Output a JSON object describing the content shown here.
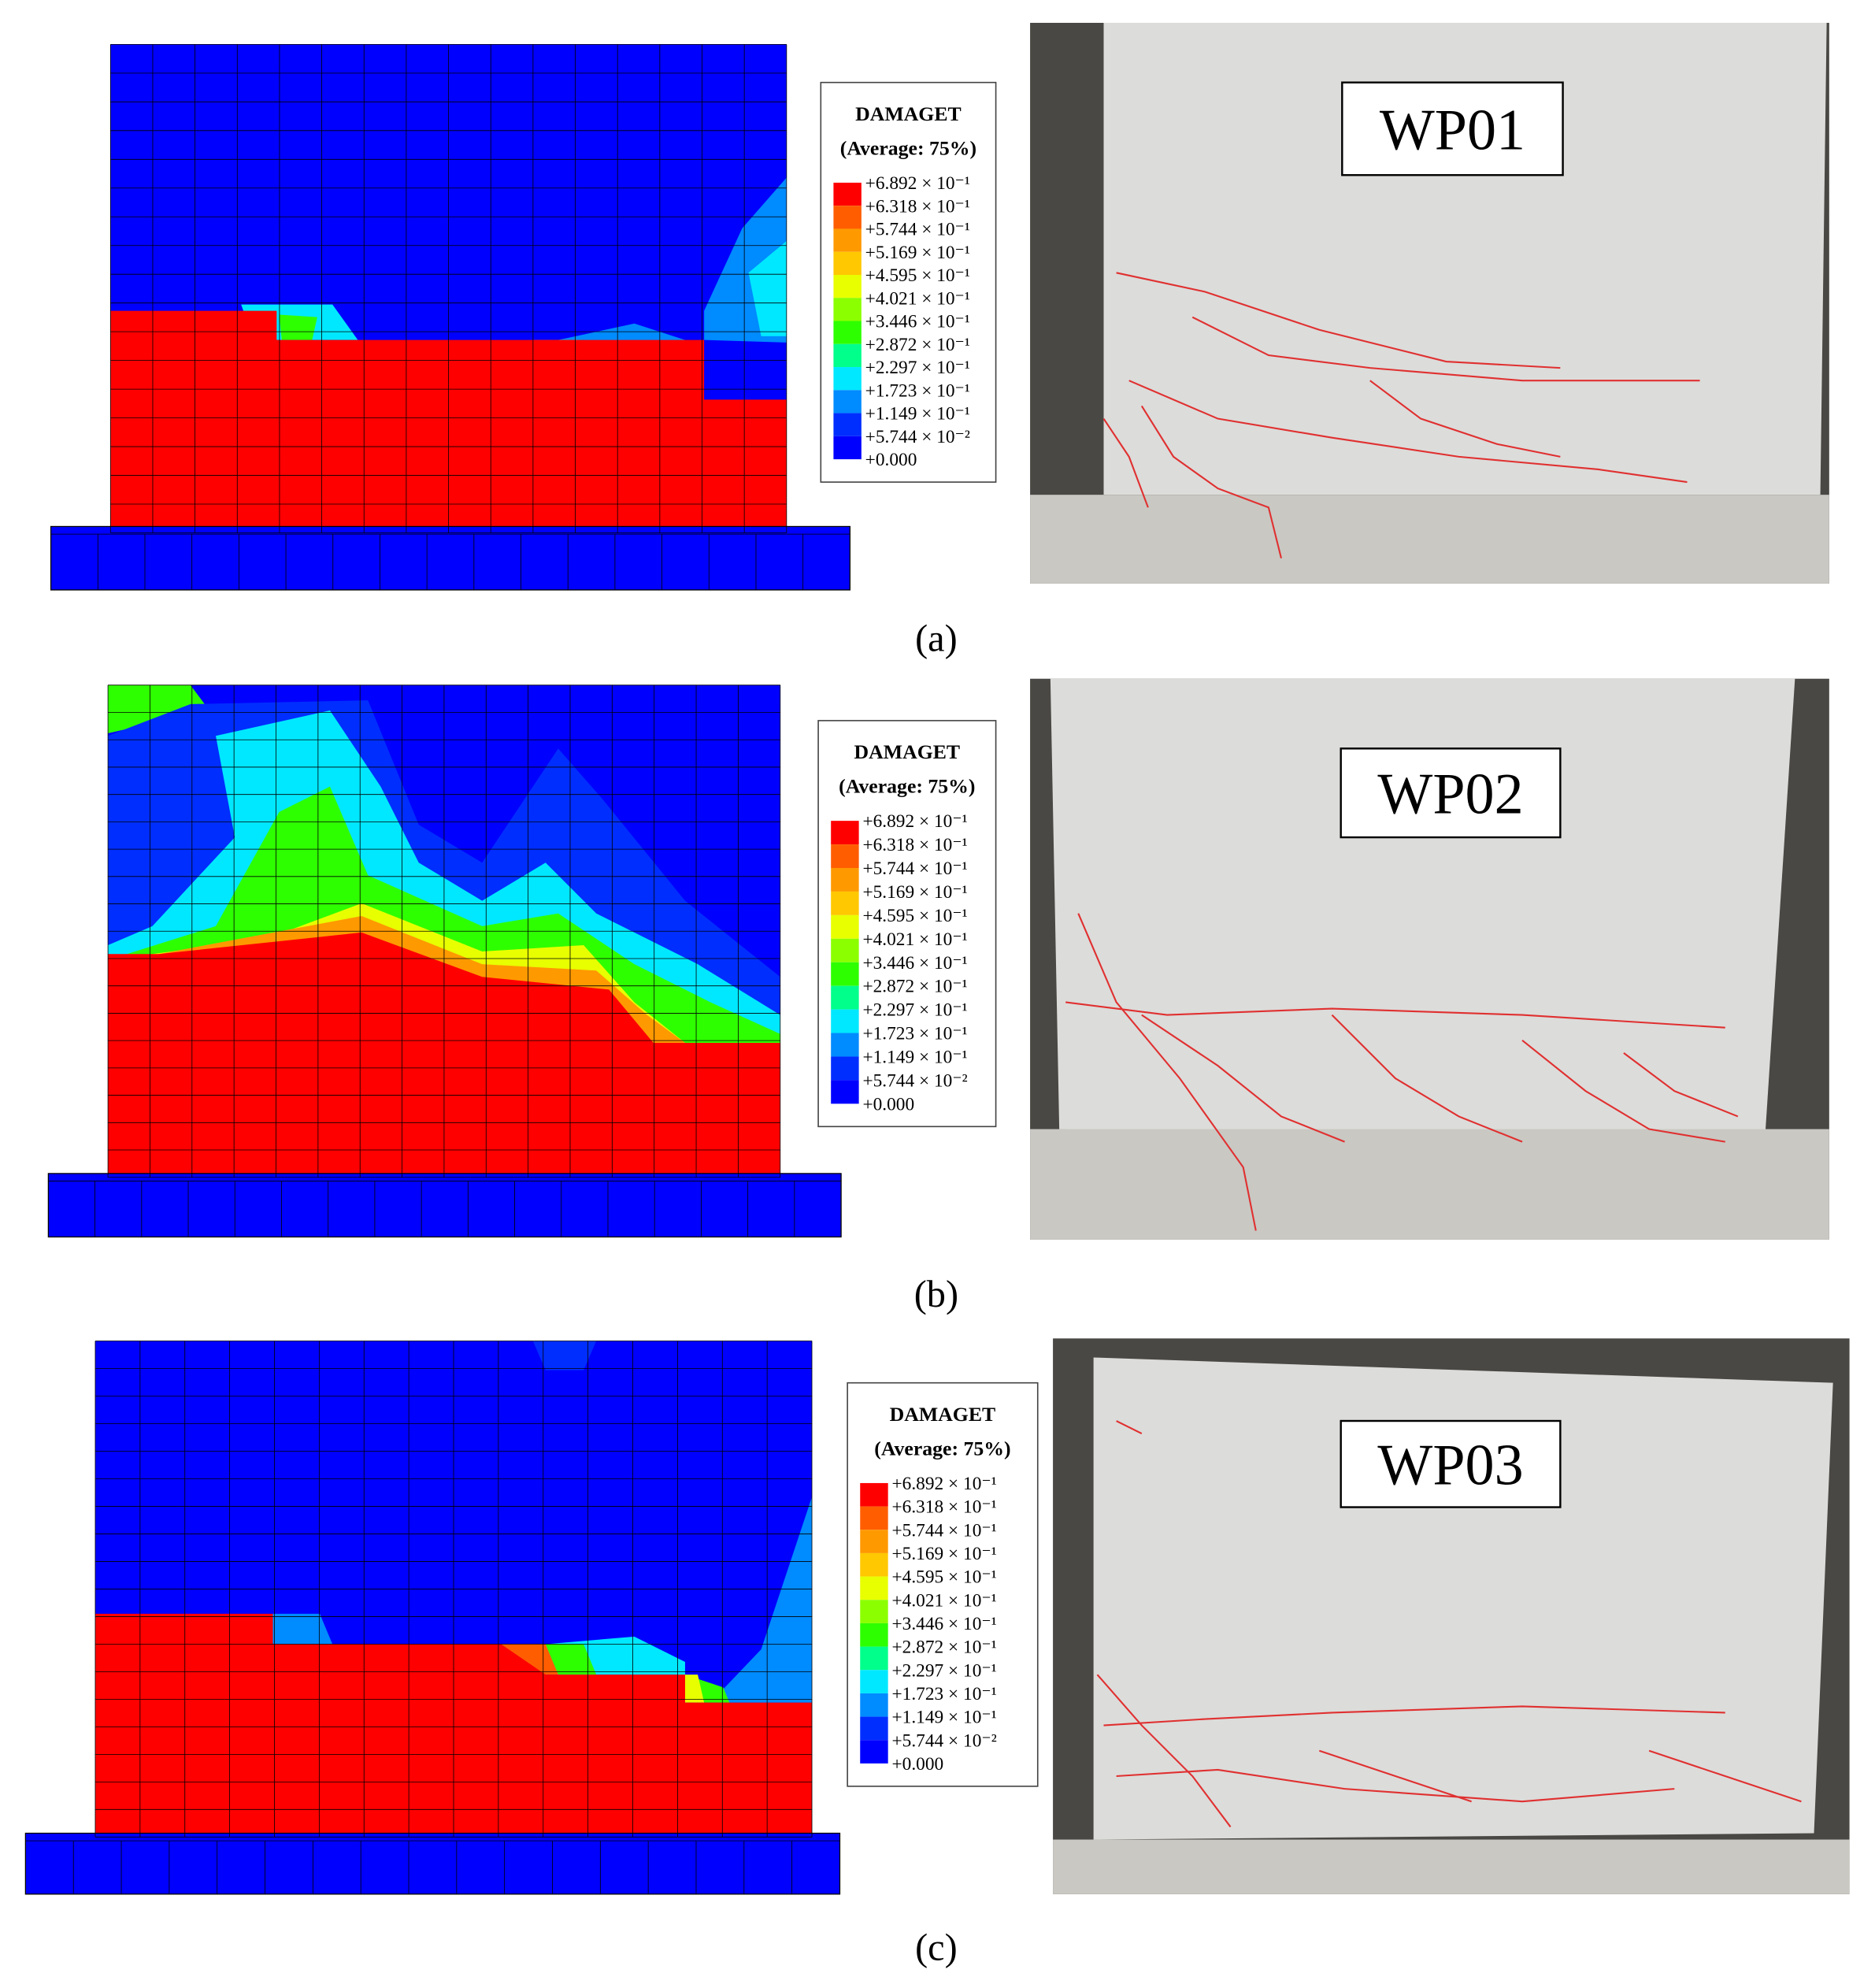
{
  "panels": [
    {
      "legend": {
        "title": "DAMAGET",
        "subtitle": "(Average: 75%)",
        "labels": [
          "+6.892 × 10⁻¹",
          "+6.318 × 10⁻¹",
          "+5.744 × 10⁻¹",
          "+5.169 × 10⁻¹",
          "+4.595 × 10⁻¹",
          "+4.021 × 10⁻¹",
          "+3.446 × 10⁻¹",
          "+2.872 × 10⁻¹",
          "+2.297 × 10⁻¹",
          "+1.723 × 10⁻¹",
          "+1.149 × 10⁻¹",
          "+5.744 × 10⁻²",
          "+0.000"
        ]
      },
      "specimen": "WP01",
      "caption": "(a)"
    },
    {
      "legend": {
        "title": "DAMAGET",
        "subtitle": "(Average: 75%)",
        "labels": [
          "+6.892 × 10⁻¹",
          "+6.318 × 10⁻¹",
          "+5.744 × 10⁻¹",
          "+5.169 × 10⁻¹",
          "+4.595 × 10⁻¹",
          "+4.021 × 10⁻¹",
          "+3.446 × 10⁻¹",
          "+2.872 × 10⁻¹",
          "+2.297 × 10⁻¹",
          "+1.723 × 10⁻¹",
          "+1.149 × 10⁻¹",
          "+5.744 × 10⁻²",
          "+0.000"
        ]
      },
      "specimen": "WP02",
      "caption": "(b)"
    },
    {
      "legend": {
        "title": "DAMAGET",
        "subtitle": "(Average: 75%)",
        "labels": [
          "+6.892 × 10⁻¹",
          "+6.318 × 10⁻¹",
          "+5.744 × 10⁻¹",
          "+5.169 × 10⁻¹",
          "+4.595 × 10⁻¹",
          "+4.021 × 10⁻¹",
          "+3.446 × 10⁻¹",
          "+2.872 × 10⁻¹",
          "+2.297 × 10⁻¹",
          "+1.723 × 10⁻¹",
          "+1.149 × 10⁻¹",
          "+5.744 × 10⁻²",
          "+0.000"
        ]
      },
      "specimen": "WP03",
      "caption": "(c)"
    }
  ]
}
